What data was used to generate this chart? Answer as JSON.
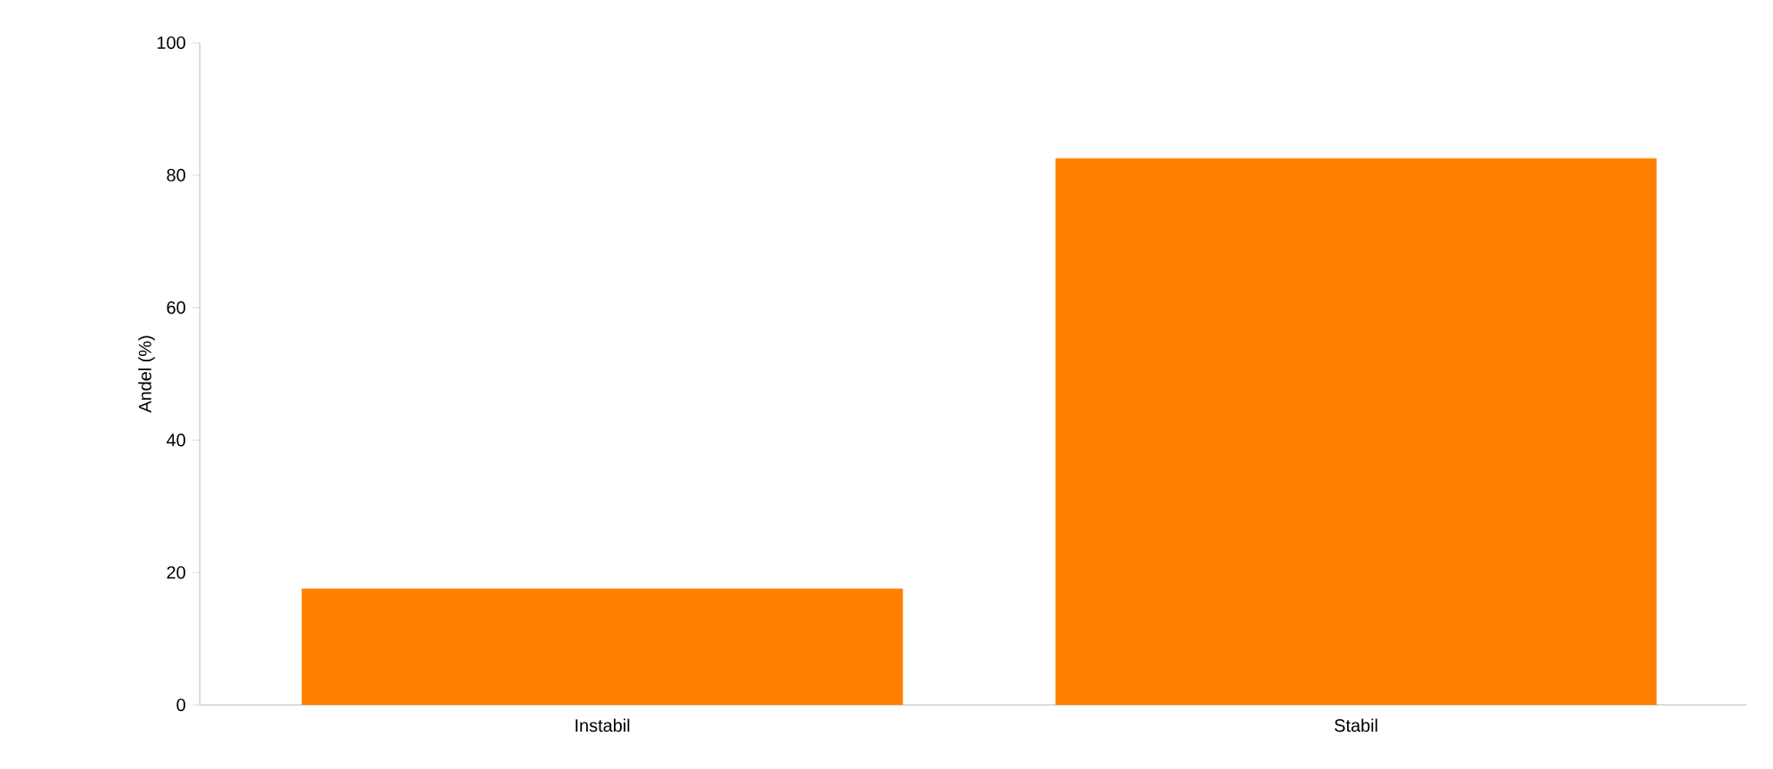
{
  "chart_data": {
    "type": "bar",
    "ylabel": "Andel (%)",
    "categories": [
      "Instabil",
      "Stabil"
    ],
    "values": [
      17.5,
      82.5
    ],
    "color": "#ff8000",
    "ylim": [
      0,
      100
    ],
    "yticks": [
      0,
      20,
      40,
      60,
      80,
      100
    ],
    "grid": false
  }
}
